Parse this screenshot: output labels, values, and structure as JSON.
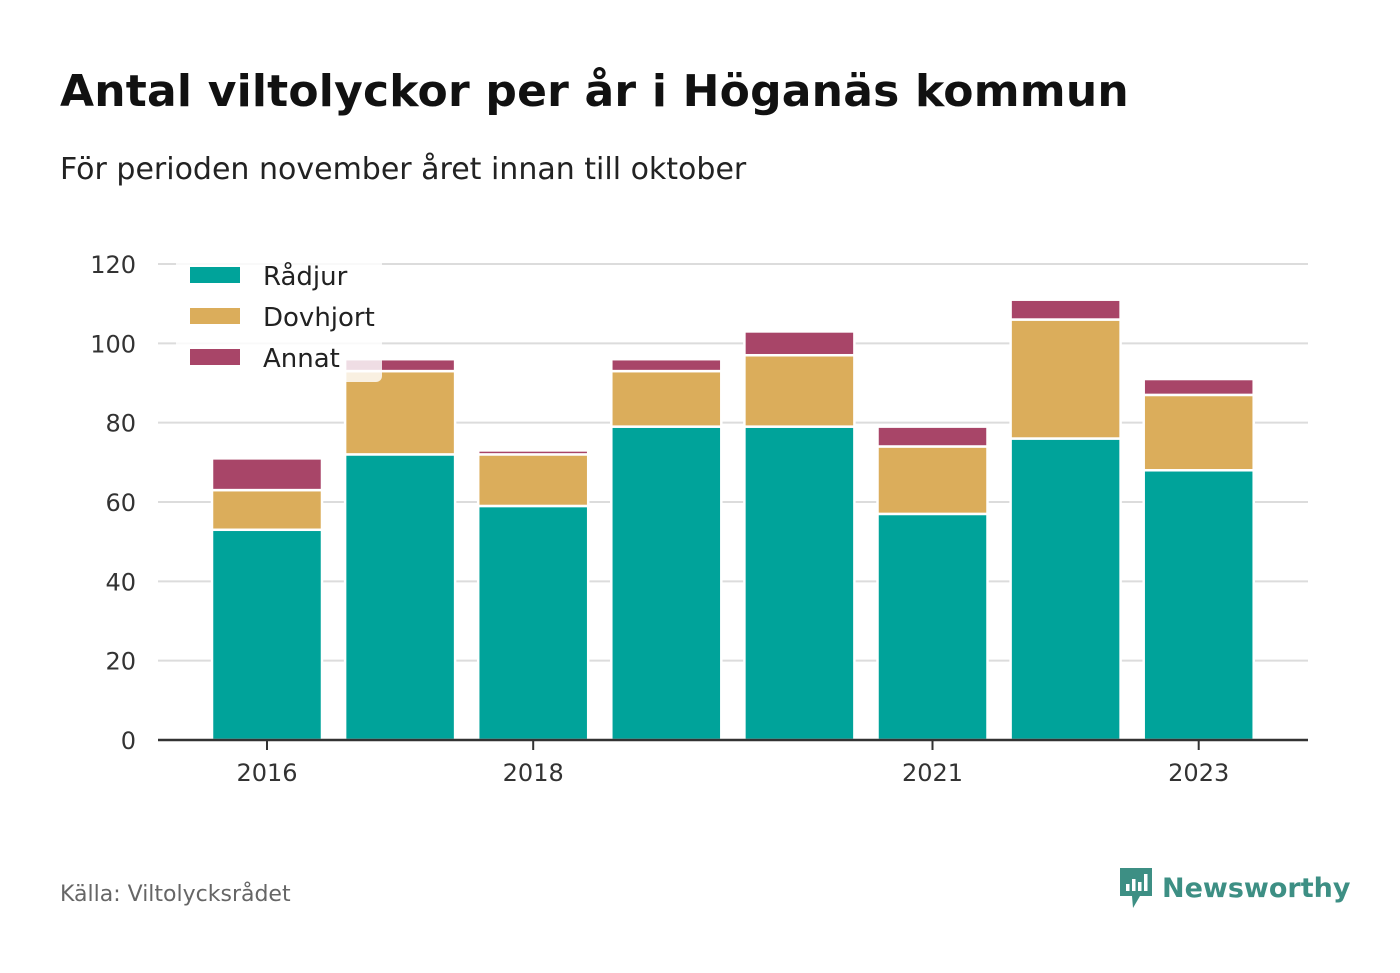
{
  "title": "Antal viltolyckor per år i Höganäs kommun",
  "subtitle": "För perioden november året innan till oktober",
  "source": "Källa: Viltolycksrådet",
  "brand": "Newsworthy",
  "colors": {
    "radjur": "#00a39a",
    "dovhjort": "#dbad5b",
    "annat": "#a84568",
    "grid": "#dcdcdc",
    "axis": "#333333"
  },
  "chart_data": {
    "type": "bar",
    "stacked": true,
    "categories": [
      "2016",
      "2017",
      "2018",
      "2019",
      "2020",
      "2021",
      "2022",
      "2023"
    ],
    "x_tick_labels": [
      "2016",
      "2018",
      "2021",
      "2023"
    ],
    "series": [
      {
        "name": "Rådjur",
        "color": "#00a39a",
        "values": [
          53,
          72,
          59,
          79,
          79,
          57,
          76,
          68
        ]
      },
      {
        "name": "Dovhjort",
        "color": "#dbad5b",
        "values": [
          10,
          21,
          13,
          14,
          18,
          17,
          30,
          19
        ]
      },
      {
        "name": "Annat",
        "color": "#a84568",
        "values": [
          8,
          3,
          1,
          3,
          6,
          5,
          5,
          4
        ]
      }
    ],
    "ylim": [
      0,
      120
    ],
    "yticks": [
      0,
      20,
      40,
      60,
      80,
      100,
      120
    ],
    "grid": true,
    "legend": "top-left"
  }
}
